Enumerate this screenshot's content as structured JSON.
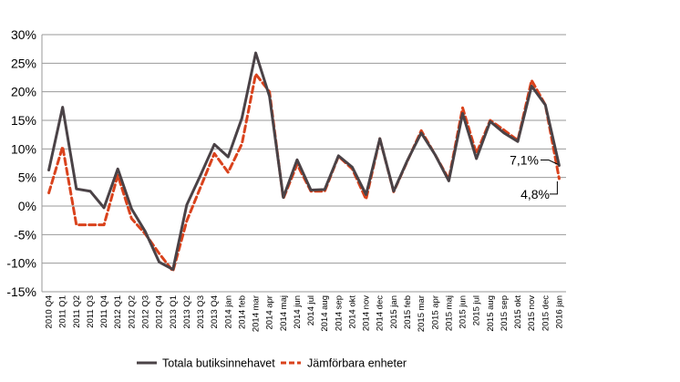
{
  "chart_data": {
    "type": "line",
    "title": "",
    "xlabel": "",
    "ylabel": "",
    "ylim": [
      -15,
      30
    ],
    "y_ticks": [
      "30%",
      "25%",
      "20%",
      "15%",
      "10%",
      "5%",
      "0%",
      "-5%",
      "-10%",
      "-15%"
    ],
    "grid": "horizontal",
    "legend_position": "bottom",
    "categories": [
      "2010 Q4",
      "2011 Q1",
      "2011 Q2",
      "2011 Q3",
      "2011 Q4",
      "2012 Q1",
      "2012 Q2",
      "2012 Q3",
      "2012 Q4",
      "2013 Q1",
      "2013 Q2",
      "2013 Q3",
      "2013 Q4",
      "2014 jan",
      "2014 feb",
      "2014 mar",
      "2014 apr",
      "2014 maj",
      "2014 jun",
      "2014 jul",
      "2014 aug",
      "2014 sep",
      "2014 okt",
      "2014 nov",
      "2014 dec",
      "2015 jan",
      "2015 feb",
      "2015 mar",
      "2015 apr",
      "2015 maj",
      "2015 jun",
      "2015 jul",
      "2015 aug",
      "2015 sep",
      "2015 okt",
      "2015 nov",
      "2015 dec",
      "2016 jan"
    ],
    "series": [
      {
        "name": "Totala butiksinnehavet",
        "color": "#4a4246",
        "style": "solid",
        "values": [
          6.3,
          17.3,
          3.0,
          2.6,
          -0.3,
          6.5,
          -0.5,
          -4.5,
          -9.8,
          -11.1,
          0.2,
          5.4,
          10.8,
          8.6,
          15.4,
          26.8,
          19.2,
          1.5,
          8.1,
          2.8,
          2.9,
          8.8,
          6.8,
          2.0,
          11.8,
          2.6,
          8.0,
          12.8,
          9.0,
          4.4,
          16.2,
          8.3,
          14.8,
          12.8,
          11.3,
          21.0,
          17.7,
          7.1
        ]
      },
      {
        "name": "Jämförbara enheter",
        "color": "#d9421c",
        "style": "dashed",
        "values": [
          2.3,
          10.4,
          -3.3,
          -3.3,
          -3.3,
          5.4,
          -2.2,
          -4.9,
          -8.3,
          -11.4,
          -2.6,
          3.3,
          9.2,
          5.9,
          10.9,
          23.1,
          20.0,
          1.3,
          7.3,
          2.6,
          2.6,
          8.7,
          6.5,
          1.2,
          11.8,
          2.5,
          7.9,
          13.2,
          9.0,
          4.7,
          17.2,
          9.2,
          15.0,
          13.3,
          11.5,
          22.0,
          17.7,
          4.8
        ]
      }
    ],
    "annotations": [
      {
        "label": "7,1%",
        "series": "Totala butiksinnehavet",
        "category": "2016 jan"
      },
      {
        "label": "4,8%",
        "series": "Jämförbara enheter",
        "category": "2016 jan"
      }
    ]
  }
}
